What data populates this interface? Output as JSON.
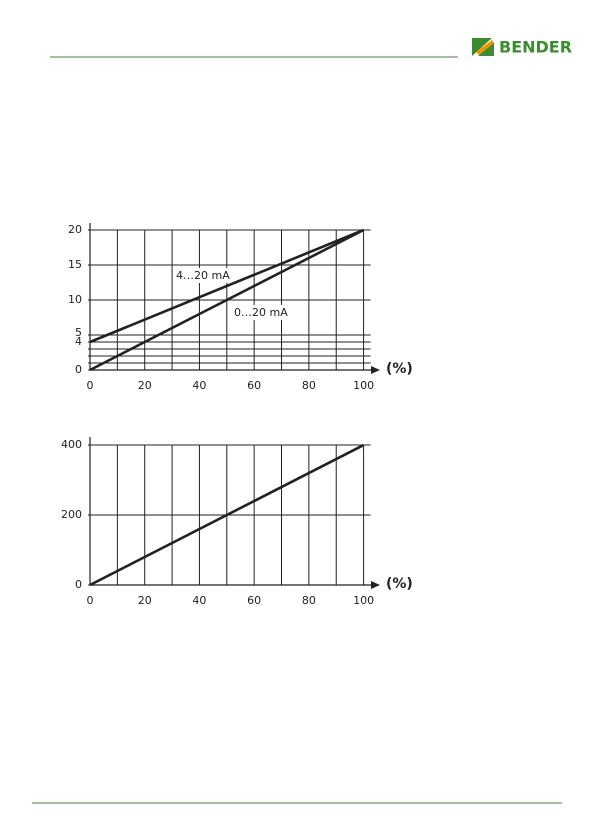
{
  "header": {
    "logo": "BENDER"
  },
  "chart_data": [
    {
      "type": "line",
      "xlabel": "(%)",
      "x": [
        0,
        100
      ],
      "series": [
        {
          "name": "4…20 mA",
          "color": "#222222",
          "values": [
            4,
            20
          ]
        },
        {
          "name": "0…20 mA",
          "color": "#222222",
          "values": [
            0,
            20
          ]
        }
      ],
      "xlim": [
        0,
        106
      ],
      "ylim": [
        0,
        21
      ],
      "xticks": [
        0,
        20,
        40,
        60,
        80,
        100
      ],
      "minor_xticks": [
        10,
        30,
        50,
        70,
        90
      ],
      "yticks": [
        0,
        4,
        5,
        10,
        15,
        20
      ],
      "minor_yticks": [
        1,
        2,
        3
      ],
      "grid": true
    },
    {
      "type": "line",
      "xlabel": "(%)",
      "x": [
        0,
        100
      ],
      "series": [
        {
          "color": "#222222",
          "values": [
            0,
            400
          ]
        }
      ],
      "xlim": [
        0,
        106
      ],
      "ylim": [
        0,
        423
      ],
      "xticks": [
        0,
        20,
        40,
        60,
        80,
        100
      ],
      "minor_xticks": [
        10,
        30,
        50,
        70,
        90
      ],
      "yticks": [
        0,
        200,
        400
      ],
      "grid": true
    }
  ]
}
